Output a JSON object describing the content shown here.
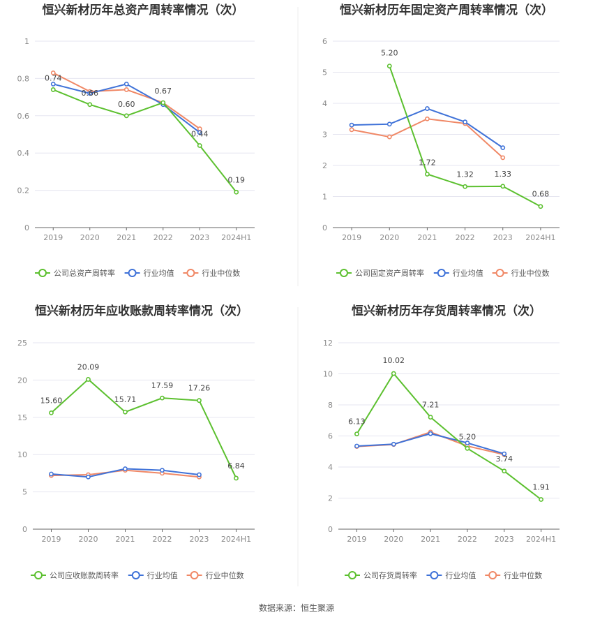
{
  "colors": {
    "company": "#5cc02f",
    "avg": "#3f72d8",
    "median": "#f08866"
  },
  "source": "数据来源：恒生聚源",
  "chart_data": [
    {
      "type": "line",
      "title": "恒兴新材历年总资产周转率情况（次）",
      "categories": [
        "2019",
        "2020",
        "2021",
        "2022",
        "2023",
        "2024H1"
      ],
      "ylim": [
        0,
        1
      ],
      "yticks": [
        "0",
        "0.2",
        "0.4",
        "0.6",
        "0.8",
        "1"
      ],
      "ytick_values": [
        0,
        0.2,
        0.4,
        0.6,
        0.8,
        1
      ],
      "grid": true,
      "legend_position": "bottom",
      "series": [
        {
          "name": "公司总资产周转率",
          "role": "company",
          "values": [
            0.74,
            0.66,
            0.6,
            0.67,
            0.44,
            0.19
          ],
          "labels": [
            "0.74",
            "0.66",
            "0.60",
            "0.67",
            "0.44",
            "0.19"
          ]
        },
        {
          "name": "行业均值",
          "role": "avg",
          "values": [
            0.77,
            0.72,
            0.77,
            0.66,
            0.51,
            null
          ]
        },
        {
          "name": "行业中位数",
          "role": "median",
          "values": [
            0.83,
            0.73,
            0.74,
            0.67,
            0.53,
            null
          ]
        }
      ]
    },
    {
      "type": "line",
      "title": "恒兴新材历年固定资产周转率情况（次）",
      "categories": [
        "2019",
        "2020",
        "2021",
        "2022",
        "2023",
        "2024H1"
      ],
      "ylim": [
        0,
        6
      ],
      "yticks": [
        "0",
        "1",
        "2",
        "3",
        "4",
        "5",
        "6"
      ],
      "ytick_values": [
        0,
        1,
        2,
        3,
        4,
        5,
        6
      ],
      "grid": true,
      "legend_position": "bottom",
      "series": [
        {
          "name": "公司固定资产周转率",
          "role": "company",
          "values": [
            null,
            5.2,
            1.72,
            1.32,
            1.33,
            0.68
          ],
          "labels": [
            null,
            "5.20",
            "1.72",
            "1.32",
            "1.33",
            "0.68"
          ]
        },
        {
          "name": "行业均值",
          "role": "avg",
          "values": [
            3.3,
            3.33,
            3.83,
            3.4,
            2.57,
            null
          ]
        },
        {
          "name": "行业中位数",
          "role": "median",
          "values": [
            3.15,
            2.92,
            3.5,
            3.35,
            2.25,
            null
          ]
        }
      ]
    },
    {
      "type": "line",
      "title": "恒兴新材历年应收账款周转率情况（次）",
      "categories": [
        "2019",
        "2020",
        "2021",
        "2022",
        "2023",
        "2024H1"
      ],
      "ylim": [
        0,
        25
      ],
      "yticks": [
        "0",
        "5",
        "10",
        "15",
        "20",
        "25"
      ],
      "ytick_values": [
        0,
        5,
        10,
        15,
        20,
        25
      ],
      "grid": true,
      "legend_position": "bottom",
      "series": [
        {
          "name": "公司应收账款周转率",
          "role": "company",
          "values": [
            15.6,
            20.09,
            15.71,
            17.59,
            17.26,
            6.84
          ],
          "labels": [
            "15.60",
            "20.09",
            "15.71",
            "17.59",
            "17.26",
            "6.84"
          ]
        },
        {
          "name": "行业均值",
          "role": "avg",
          "values": [
            7.4,
            7.0,
            8.1,
            7.9,
            7.3,
            null
          ]
        },
        {
          "name": "行业中位数",
          "role": "median",
          "values": [
            7.2,
            7.3,
            7.9,
            7.5,
            7.0,
            null
          ]
        }
      ]
    },
    {
      "type": "line",
      "title": "恒兴新材历年存货周转率情况（次）",
      "categories": [
        "2019",
        "2020",
        "2021",
        "2022",
        "2023",
        "2024H1"
      ],
      "ylim": [
        0,
        12
      ],
      "yticks": [
        "0",
        "2",
        "4",
        "6",
        "8",
        "10",
        "12"
      ],
      "ytick_values": [
        0,
        2,
        4,
        6,
        8,
        10,
        12
      ],
      "grid": true,
      "legend_position": "bottom",
      "series": [
        {
          "name": "公司存货周转率",
          "role": "company",
          "values": [
            6.13,
            10.02,
            7.21,
            5.2,
            3.74,
            1.91
          ],
          "labels": [
            "6.13",
            "10.02",
            "7.21",
            "5.20",
            "3.74",
            "1.91"
          ]
        },
        {
          "name": "行业均值",
          "role": "avg",
          "values": [
            5.35,
            5.47,
            6.15,
            5.55,
            4.85,
            null
          ]
        },
        {
          "name": "行业中位数",
          "role": "median",
          "values": [
            5.32,
            5.45,
            6.25,
            5.35,
            4.8,
            null
          ]
        }
      ]
    }
  ]
}
